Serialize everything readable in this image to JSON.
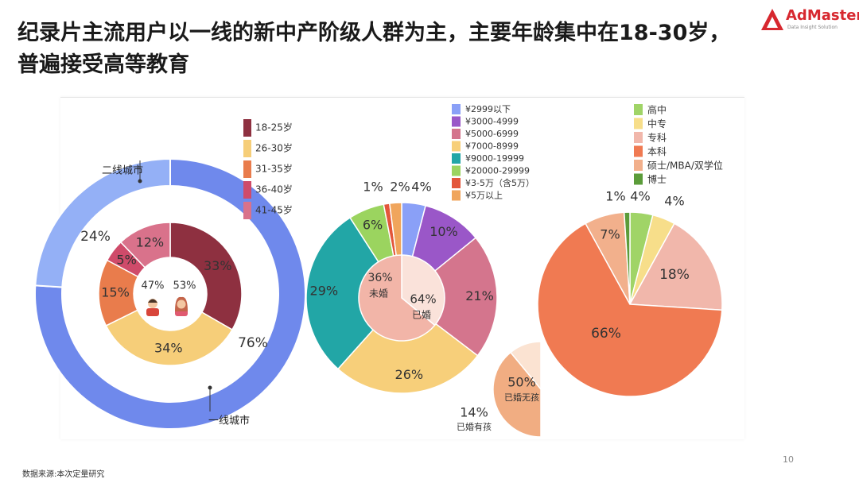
{
  "slide": {
    "title": "纪录片主流用户以一线的新中产阶级人群为主，主要年龄集中在18-30岁，普遍接受高等教育",
    "source": "数据来源:本次定量研究",
    "page_number": "10",
    "logo": {
      "name": "AdMaster",
      "tagline": "Data Insight Solution",
      "icon": "admaster-logo-icon",
      "color": "#d7282f"
    }
  },
  "chart_data": [
    {
      "id": "city",
      "type": "pie",
      "subtype": "donut-outer-ring",
      "categories": [
        "一线城市",
        "二线城市"
      ],
      "values": [
        76,
        24
      ],
      "labels": [
        "76%",
        "24%"
      ],
      "colors": [
        "#6f89ec",
        "#94b0f6"
      ]
    },
    {
      "id": "age",
      "type": "pie",
      "subtype": "donut-inner-ring",
      "categories": [
        "18-25岁",
        "26-30岁",
        "31-35岁",
        "36-40岁",
        "41-45岁"
      ],
      "values": [
        33,
        34,
        15,
        5,
        12
      ],
      "labels": [
        "33%",
        "34%",
        "15%",
        "5%",
        "12%"
      ],
      "colors": [
        "#8e3040",
        "#f6ce79",
        "#e97c4c",
        "#cf4b6a",
        "#d9728b"
      ]
    },
    {
      "id": "gender",
      "type": "pie",
      "subtype": "center-gender-split",
      "categories": [
        "male",
        "female"
      ],
      "values": [
        47,
        53
      ],
      "labels": [
        "47%",
        "53%"
      ],
      "icons": [
        "man-avatar-icon",
        "woman-avatar-icon"
      ]
    },
    {
      "id": "income",
      "type": "pie",
      "subtype": "donut",
      "categories": [
        "¥2999以下",
        "¥3000-4999",
        "¥5000-6999",
        "¥7000-8999",
        "¥9000-19999",
        "¥20000-29999",
        "¥3-5万（含5万）",
        "¥5万以上"
      ],
      "values": [
        4,
        10,
        21,
        26,
        29,
        6,
        1,
        2
      ],
      "labels": [
        "4%",
        "10%",
        "21%",
        "26%",
        "29%",
        "6%",
        "1%",
        "2%"
      ],
      "colors": [
        "#8aa0f7",
        "#9a57c8",
        "#d4758d",
        "#f7cf7a",
        "#22a6a6",
        "#9bd45f",
        "#e3563a",
        "#f0a55c"
      ]
    },
    {
      "id": "marriage",
      "type": "pie",
      "subtype": "inner-pie",
      "categories": [
        "未婚",
        "已婚"
      ],
      "values": [
        36,
        64
      ],
      "labels": [
        "36%",
        "64%"
      ],
      "colors": [
        "#fae2da",
        "#f2b5a8"
      ]
    },
    {
      "id": "children",
      "type": "pie",
      "subtype": "exploded-half-pie",
      "categories": [
        "已婚无孩",
        "已婚有孩"
      ],
      "values": [
        50,
        14
      ],
      "labels": [
        "50%",
        "14%"
      ],
      "colors": [
        "#f1ad82",
        "#fbe3d2"
      ]
    },
    {
      "id": "education",
      "type": "pie",
      "categories": [
        "高中",
        "中专",
        "专科",
        "本科",
        "硕士/MBA/双学位",
        "博士"
      ],
      "values": [
        4,
        4,
        18,
        66,
        7,
        1
      ],
      "labels": [
        "4%",
        "4%",
        "18%",
        "66%",
        "7%",
        "1%"
      ],
      "colors": [
        "#a0d467",
        "#f7de8a",
        "#f1b7ab",
        "#f07a52",
        "#f2b08c",
        "#5b9c3a"
      ]
    }
  ]
}
